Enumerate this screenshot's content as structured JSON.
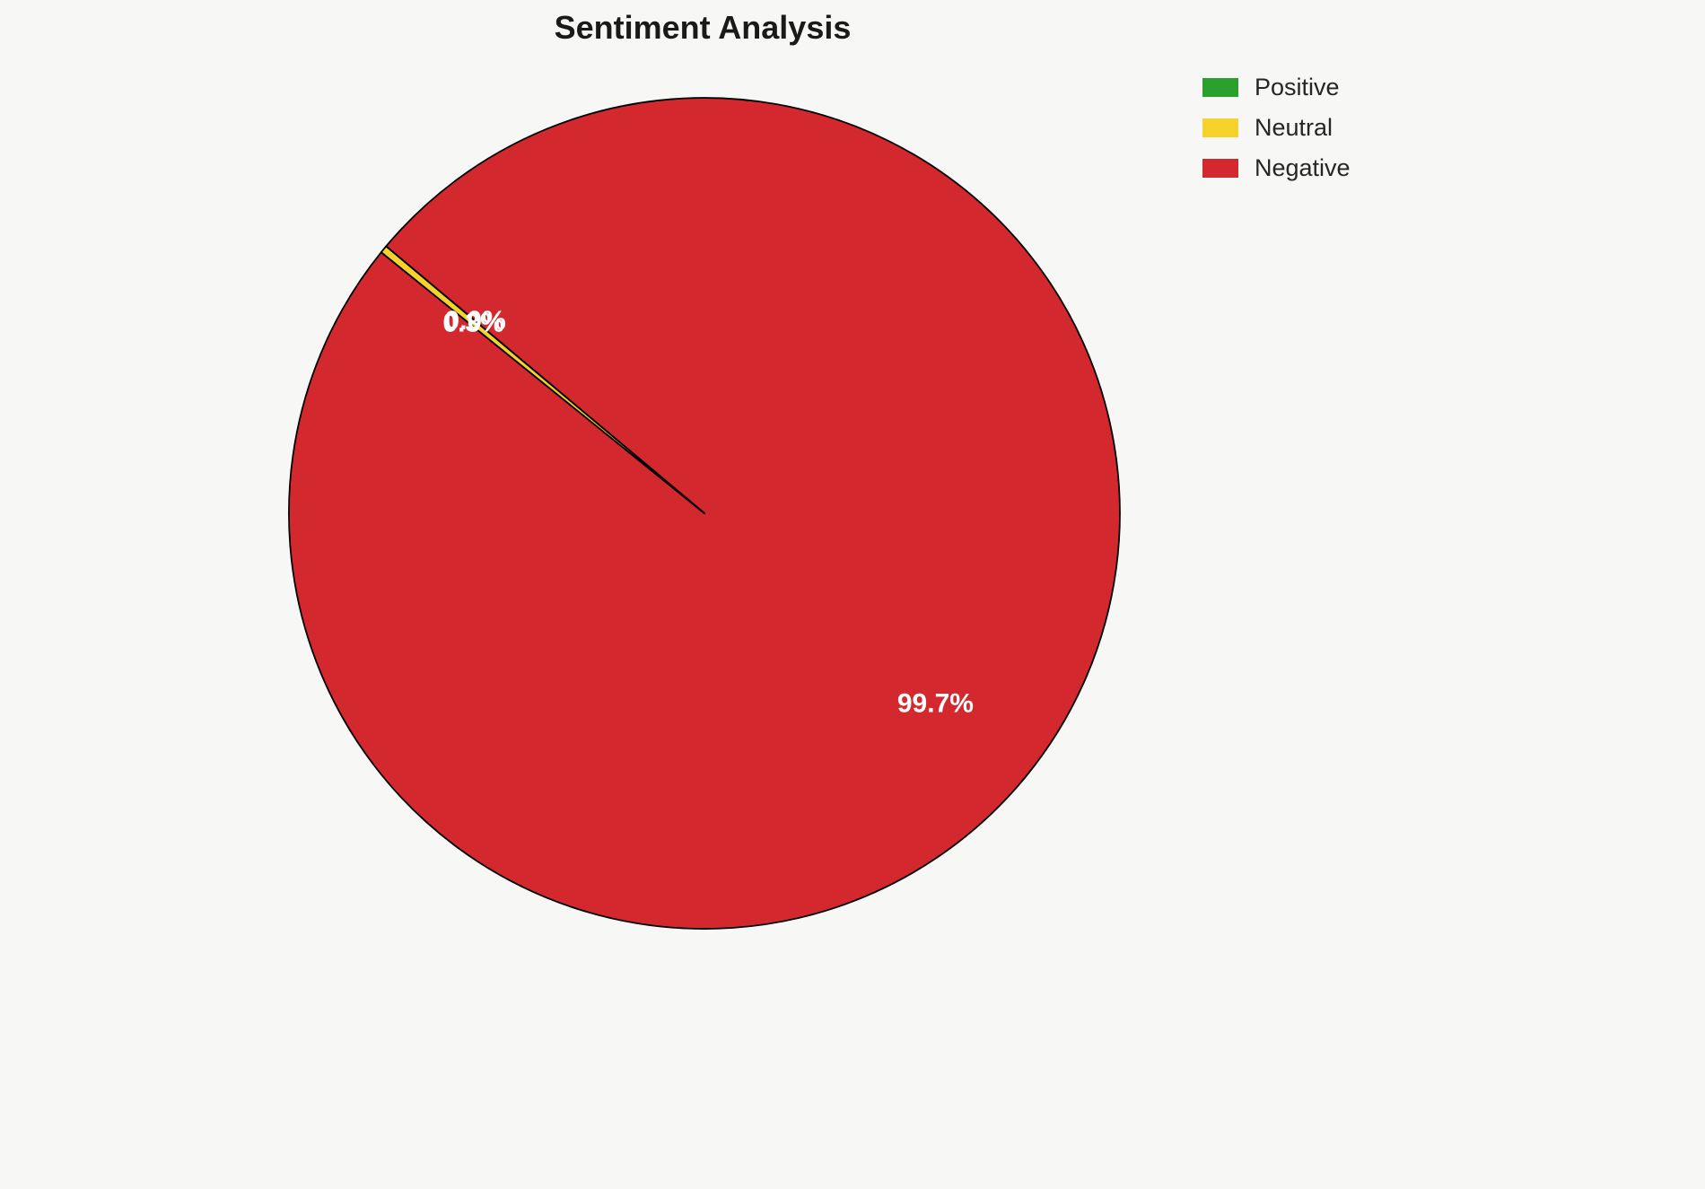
{
  "page": {
    "background": "#f7f7f5"
  },
  "title": "Sentiment Analysis",
  "chart_data": {
    "type": "pie",
    "title": "Sentiment Analysis",
    "categories": [
      "Positive",
      "Neutral",
      "Negative"
    ],
    "values": [
      0.0,
      0.3,
      99.7
    ],
    "percent_labels": [
      "0.0%",
      "0.3%",
      "99.7%"
    ],
    "colors": [
      "#2ca02c",
      "#f5d32b",
      "#d3292e"
    ],
    "edge_color": "#000000",
    "percent_label_color": "#ffffff",
    "legend_position": "upper right",
    "start_angle_deg": 140,
    "direction": "counterclockwise"
  }
}
